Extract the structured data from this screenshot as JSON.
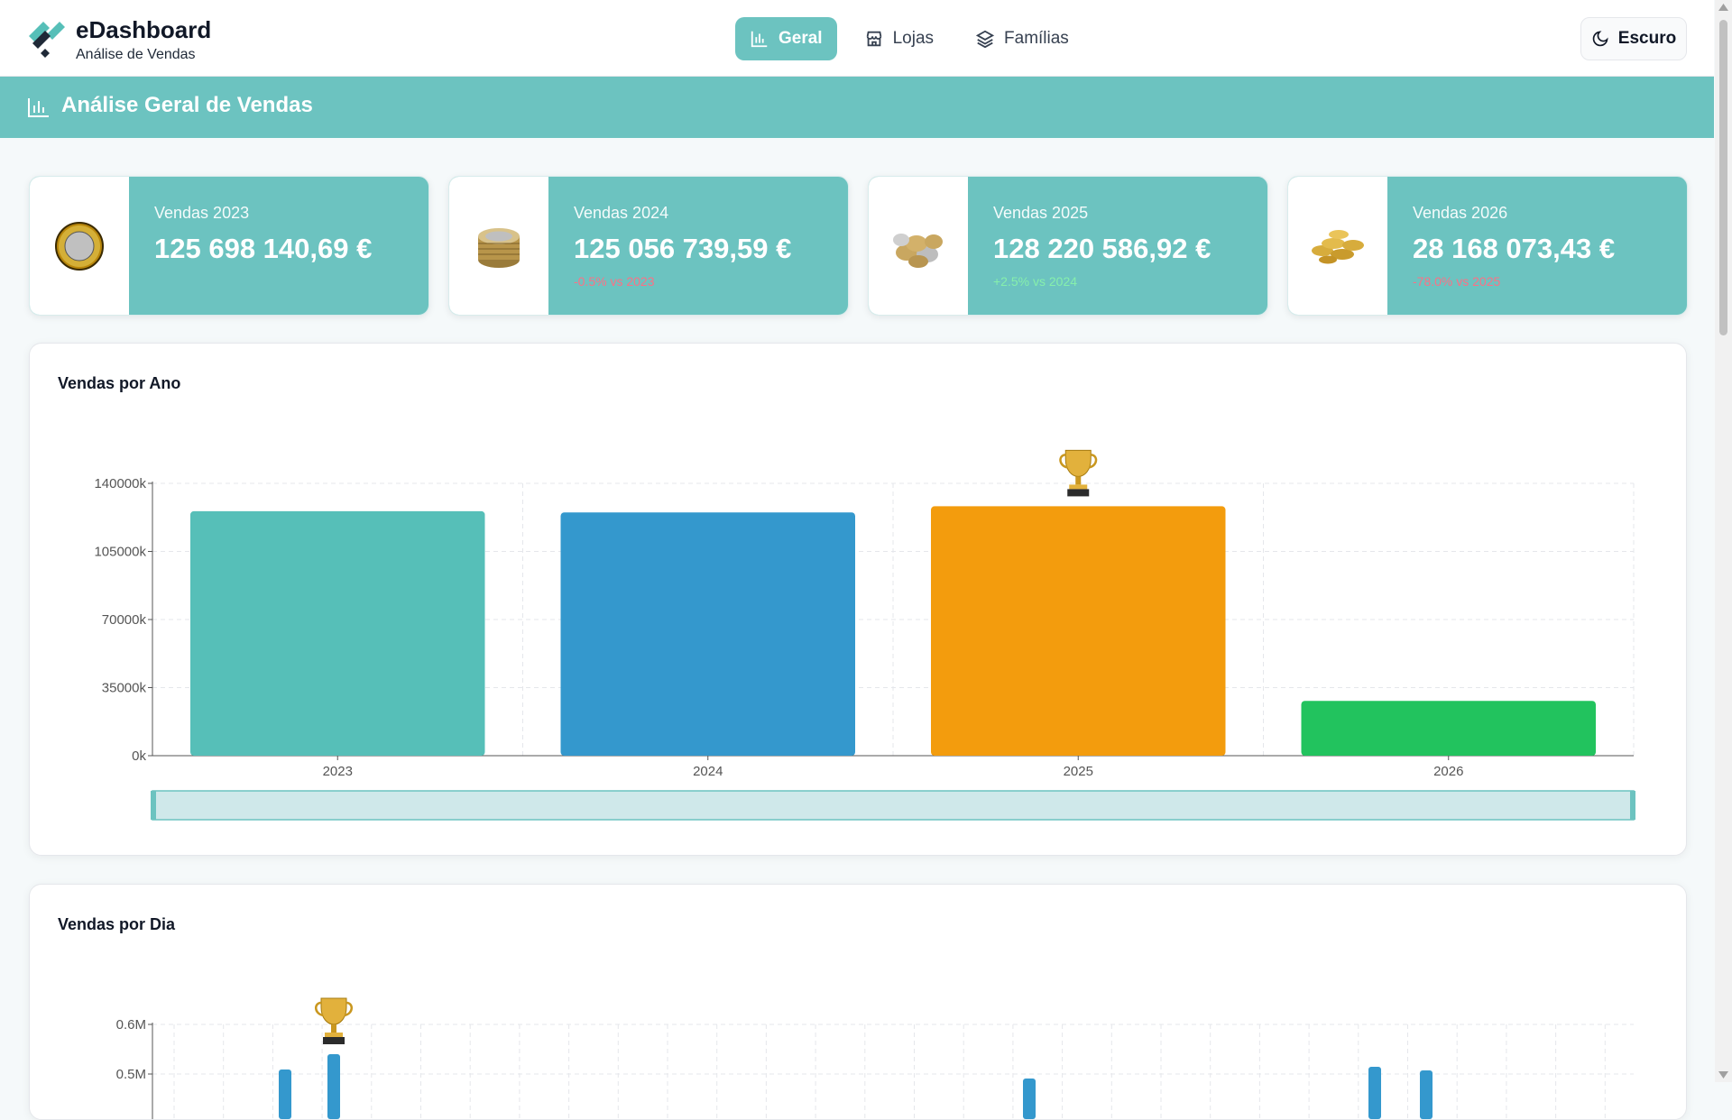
{
  "header": {
    "brand_title": "eDashboard",
    "brand_subtitle": "Análise de Vendas",
    "nav": [
      {
        "label": "Geral",
        "icon": "bar-chart-icon",
        "active": true
      },
      {
        "label": "Lojas",
        "icon": "store-icon",
        "active": false
      },
      {
        "label": "Famílias",
        "icon": "layers-icon",
        "active": false
      }
    ],
    "theme_button_label": "Escuro"
  },
  "section": {
    "title": "Análise Geral de Vendas"
  },
  "kpis": [
    {
      "label": "Vendas 2023",
      "value": "125 698 140,69 €",
      "delta": "",
      "icon": "single-euro-coin-icon"
    },
    {
      "label": "Vendas 2024",
      "value": "125 056 739,59 €",
      "delta": "-0.5% vs 2023",
      "icon": "coin-stack-icon"
    },
    {
      "label": "Vendas 2025",
      "value": "128 220 586,92 €",
      "delta": "+2.5% vs 2024",
      "icon": "coin-pile-icon"
    },
    {
      "label": "Vendas 2026",
      "value": "28 168 073,43 €",
      "delta": "-78.0% vs 2025",
      "icon": "gold-coins-icon"
    }
  ],
  "colors": {
    "accent": "#6cc3c0",
    "bar_2023": "#56bfb8",
    "bar_2024": "#3498cd",
    "bar_2025": "#f39c0d",
    "bar_2026": "#22c35e",
    "negative": "#fb7185",
    "positive": "#86efac"
  },
  "chart_data": [
    {
      "type": "bar",
      "title": "Vendas por Ano",
      "categories": [
        "2023",
        "2024",
        "2025",
        "2026"
      ],
      "values": [
        125698140.69,
        125056739.59,
        128220586.92,
        28168073.43
      ],
      "ylim": [
        0,
        140000000
      ],
      "yticks": [
        "0k",
        "35000k",
        "70000k",
        "105000k",
        "140000k"
      ],
      "grid": true,
      "highlight": {
        "category": "2025",
        "icon": "trophy-icon"
      }
    },
    {
      "type": "bar",
      "title": "Vendas por Dia",
      "yticks_visible": [
        "0.5M",
        "0.6M"
      ],
      "grid": true,
      "highlight": {
        "icon": "trophy-icon"
      }
    }
  ]
}
